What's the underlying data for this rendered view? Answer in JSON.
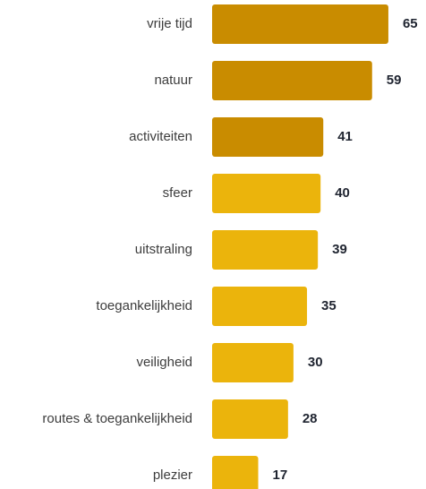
{
  "chart_data": {
    "type": "bar",
    "orientation": "horizontal",
    "categories": [
      "vrije tijd",
      "natuur",
      "activiteiten",
      "sfeer",
      "uitstraling",
      "toegankelijkheid",
      "veiligheid",
      "routes & toegankelijkheid",
      "plezier"
    ],
    "values": [
      65,
      59,
      41,
      40,
      39,
      35,
      30,
      28,
      17
    ],
    "colors": [
      "#c98c00",
      "#c98c00",
      "#c98c00",
      "#ebb40c",
      "#ebb40c",
      "#ebb40c",
      "#ebb40c",
      "#ebb40c",
      "#ebb40c"
    ]
  }
}
